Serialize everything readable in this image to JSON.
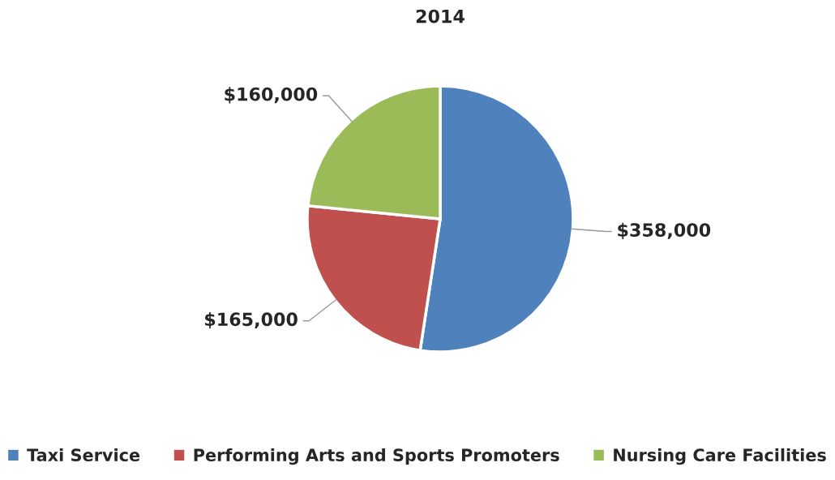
{
  "chart_data": {
    "type": "pie",
    "title": "2014",
    "categories": [
      "Taxi Service",
      "Performing Arts and Sports Promoters",
      "Nursing Care Facilities"
    ],
    "values": [
      358000,
      165000,
      160000
    ],
    "colors": [
      "#4f81bd",
      "#c0504d",
      "#9bbb59"
    ],
    "value_labels": [
      "$358,000",
      "$165,000",
      "$160,000"
    ],
    "legend": "bottom"
  }
}
